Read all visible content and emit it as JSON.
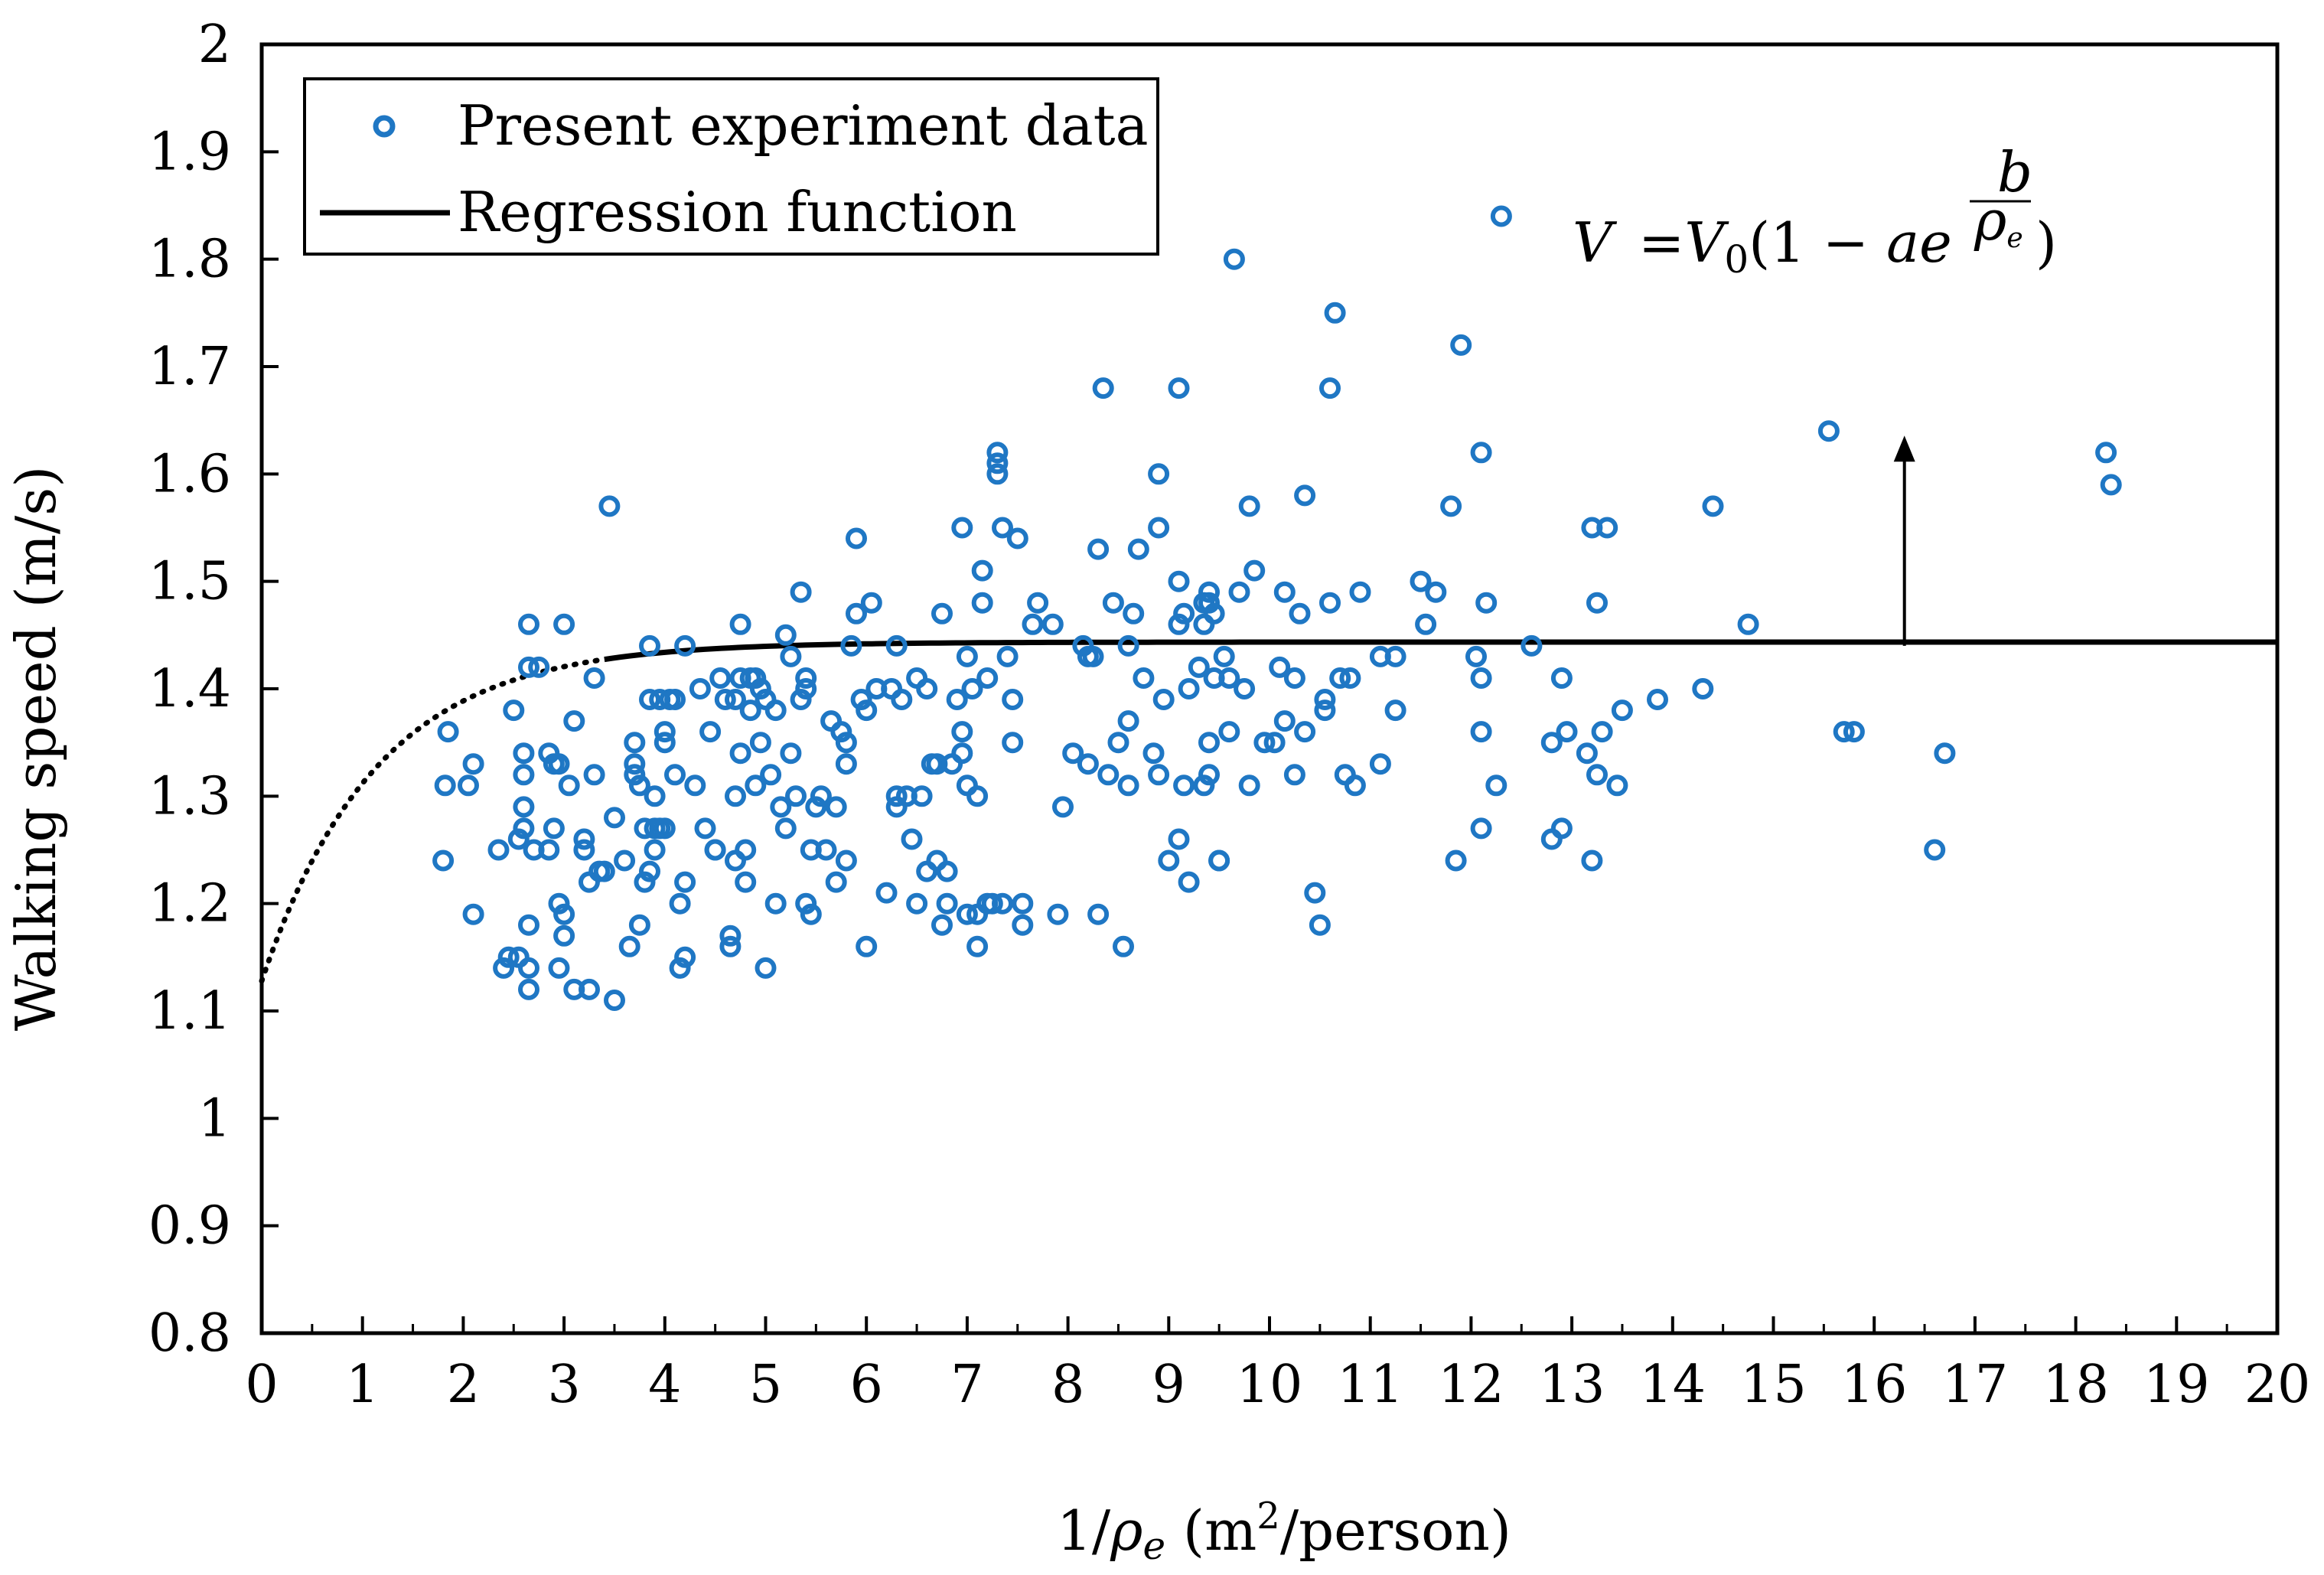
{
  "chart_data": {
    "type": "scatter",
    "title": "",
    "xlabel": {
      "pre": "1/",
      "rho": "ρ",
      "sub": "e",
      "unit_open": " (m",
      "sup": "2",
      "unit_close": "/person)"
    },
    "ylabel": "Walking speed (m/s)",
    "xlim": [
      0,
      20
    ],
    "ylim": [
      0.8,
      2.0
    ],
    "x_ticks": [
      "0",
      "1",
      "2",
      "3",
      "4",
      "5",
      "6",
      "7",
      "8",
      "9",
      "10",
      "11",
      "12",
      "13",
      "14",
      "15",
      "16",
      "17",
      "18",
      "19",
      "20"
    ],
    "y_ticks": [
      "0.8",
      "0.9",
      "1",
      "1.1",
      "1.2",
      "1.3",
      "1.4",
      "1.5",
      "1.6",
      "1.7",
      "1.8",
      "1.9",
      "2"
    ],
    "grid": false,
    "legend": {
      "position": "top-left",
      "entries": [
        {
          "label": "Present experiment data",
          "marker": "circle"
        },
        {
          "label": "Regression function",
          "marker": "line"
        }
      ]
    },
    "annotation": {
      "V": "V",
      "eq": "=",
      "V0": "V",
      "V0sub": "0",
      "open": "(1 − ",
      "a": "a",
      "e": "e",
      "close": ")",
      "num": "b",
      "den": "ρ",
      "densub": "e",
      "arrow_from": [
        16.3,
        1.44
      ],
      "arrow_to": [
        16.3,
        1.63
      ]
    },
    "regression": {
      "V0": 1.4435,
      "a": 0.2186,
      "b": -0.875,
      "x_start": 0,
      "x_end": 20,
      "dotted_until": 3.4
    },
    "series": [
      {
        "name": "Present experiment data",
        "color": "#1f77c4",
        "points": [
          [
            1.8,
            1.24
          ],
          [
            1.85,
            1.36
          ],
          [
            1.82,
            1.31
          ],
          [
            2.05,
            1.31
          ],
          [
            2.1,
            1.33
          ],
          [
            2.1,
            1.19
          ],
          [
            2.35,
            1.25
          ],
          [
            2.4,
            1.14
          ],
          [
            2.45,
            1.15
          ],
          [
            2.5,
            1.38
          ],
          [
            2.55,
            1.26
          ],
          [
            2.55,
            1.15
          ],
          [
            2.6,
            1.34
          ],
          [
            2.6,
            1.32
          ],
          [
            2.6,
            1.29
          ],
          [
            2.6,
            1.27
          ],
          [
            2.65,
            1.46
          ],
          [
            2.65,
            1.42
          ],
          [
            2.65,
            1.18
          ],
          [
            2.65,
            1.14
          ],
          [
            2.65,
            1.12
          ],
          [
            2.7,
            1.25
          ],
          [
            2.75,
            1.42
          ],
          [
            2.85,
            1.34
          ],
          [
            2.85,
            1.25
          ],
          [
            2.9,
            1.27
          ],
          [
            2.9,
            1.33
          ],
          [
            2.95,
            1.33
          ],
          [
            2.95,
            1.2
          ],
          [
            2.95,
            1.14
          ],
          [
            3.0,
            1.46
          ],
          [
            3.0,
            1.19
          ],
          [
            3.0,
            1.17
          ],
          [
            3.05,
            1.31
          ],
          [
            3.1,
            1.37
          ],
          [
            3.1,
            1.12
          ],
          [
            3.2,
            1.26
          ],
          [
            3.2,
            1.25
          ],
          [
            3.25,
            1.12
          ],
          [
            3.25,
            1.22
          ],
          [
            3.3,
            1.41
          ],
          [
            3.3,
            1.32
          ],
          [
            3.35,
            1.23
          ],
          [
            3.4,
            1.23
          ],
          [
            3.45,
            1.57
          ],
          [
            3.5,
            1.28
          ],
          [
            3.5,
            1.11
          ],
          [
            3.6,
            1.24
          ],
          [
            3.65,
            1.16
          ],
          [
            3.7,
            1.35
          ],
          [
            3.7,
            1.33
          ],
          [
            3.7,
            1.32
          ],
          [
            3.75,
            1.31
          ],
          [
            3.75,
            1.18
          ],
          [
            3.8,
            1.27
          ],
          [
            3.8,
            1.22
          ],
          [
            3.85,
            1.44
          ],
          [
            3.85,
            1.39
          ],
          [
            3.85,
            1.23
          ],
          [
            3.9,
            1.3
          ],
          [
            3.9,
            1.27
          ],
          [
            3.9,
            1.25
          ],
          [
            3.95,
            1.27
          ],
          [
            3.95,
            1.39
          ],
          [
            4.0,
            1.36
          ],
          [
            4.0,
            1.35
          ],
          [
            4.0,
            1.27
          ],
          [
            4.05,
            1.39
          ],
          [
            4.1,
            1.39
          ],
          [
            4.1,
            1.32
          ],
          [
            4.15,
            1.2
          ],
          [
            4.15,
            1.14
          ],
          [
            4.2,
            1.44
          ],
          [
            4.2,
            1.15
          ],
          [
            4.2,
            1.22
          ],
          [
            4.3,
            1.31
          ],
          [
            4.35,
            1.4
          ],
          [
            4.4,
            1.27
          ],
          [
            4.45,
            1.36
          ],
          [
            4.5,
            1.25
          ],
          [
            4.5,
            1.25
          ],
          [
            4.55,
            1.41
          ],
          [
            4.6,
            1.39
          ],
          [
            4.65,
            1.17
          ],
          [
            4.65,
            1.16
          ],
          [
            4.7,
            1.39
          ],
          [
            4.7,
            1.24
          ],
          [
            4.7,
            1.3
          ],
          [
            4.75,
            1.46
          ],
          [
            4.75,
            1.41
          ],
          [
            4.75,
            1.34
          ],
          [
            4.8,
            1.25
          ],
          [
            4.8,
            1.22
          ],
          [
            4.85,
            1.41
          ],
          [
            4.85,
            1.38
          ],
          [
            4.9,
            1.41
          ],
          [
            4.9,
            1.31
          ],
          [
            4.95,
            1.4
          ],
          [
            4.95,
            1.35
          ],
          [
            5.0,
            1.39
          ],
          [
            5.0,
            1.14
          ],
          [
            5.05,
            1.32
          ],
          [
            5.1,
            1.38
          ],
          [
            5.1,
            1.2
          ],
          [
            5.15,
            1.29
          ],
          [
            5.2,
            1.45
          ],
          [
            5.2,
            1.27
          ],
          [
            5.25,
            1.34
          ],
          [
            5.25,
            1.43
          ],
          [
            5.3,
            1.3
          ],
          [
            5.35,
            1.49
          ],
          [
            5.35,
            1.39
          ],
          [
            5.4,
            1.41
          ],
          [
            5.4,
            1.4
          ],
          [
            5.4,
            1.2
          ],
          [
            5.45,
            1.19
          ],
          [
            5.45,
            1.25
          ],
          [
            5.5,
            1.29
          ],
          [
            5.55,
            1.3
          ],
          [
            5.6,
            1.25
          ],
          [
            5.65,
            1.37
          ],
          [
            5.7,
            1.29
          ],
          [
            5.7,
            1.22
          ],
          [
            5.75,
            1.36
          ],
          [
            5.8,
            1.24
          ],
          [
            5.8,
            1.35
          ],
          [
            5.8,
            1.33
          ],
          [
            5.85,
            1.44
          ],
          [
            5.9,
            1.54
          ],
          [
            5.9,
            1.47
          ],
          [
            5.95,
            1.39
          ],
          [
            6.0,
            1.16
          ],
          [
            6.0,
            1.38
          ],
          [
            6.05,
            1.48
          ],
          [
            6.1,
            1.4
          ],
          [
            6.2,
            1.21
          ],
          [
            6.25,
            1.4
          ],
          [
            6.3,
            1.44
          ],
          [
            6.3,
            1.3
          ],
          [
            6.3,
            1.29
          ],
          [
            6.35,
            1.39
          ],
          [
            6.4,
            1.3
          ],
          [
            6.45,
            1.26
          ],
          [
            6.5,
            1.41
          ],
          [
            6.5,
            1.2
          ],
          [
            6.55,
            1.3
          ],
          [
            6.6,
            1.4
          ],
          [
            6.6,
            1.23
          ],
          [
            6.65,
            1.33
          ],
          [
            6.7,
            1.24
          ],
          [
            6.7,
            1.33
          ],
          [
            6.75,
            1.47
          ],
          [
            6.75,
            1.18
          ],
          [
            6.8,
            1.2
          ],
          [
            6.8,
            1.23
          ],
          [
            6.85,
            1.33
          ],
          [
            6.9,
            1.39
          ],
          [
            6.95,
            1.55
          ],
          [
            6.95,
            1.36
          ],
          [
            6.95,
            1.34
          ],
          [
            7.0,
            1.43
          ],
          [
            7.0,
            1.31
          ],
          [
            7.0,
            1.19
          ],
          [
            7.05,
            1.4
          ],
          [
            7.1,
            1.19
          ],
          [
            7.1,
            1.3
          ],
          [
            7.1,
            1.16
          ],
          [
            7.15,
            1.48
          ],
          [
            7.15,
            1.51
          ],
          [
            7.2,
            1.41
          ],
          [
            7.2,
            1.2
          ],
          [
            7.25,
            1.2
          ],
          [
            7.3,
            1.62
          ],
          [
            7.3,
            1.61
          ],
          [
            7.3,
            1.6
          ],
          [
            7.35,
            1.55
          ],
          [
            7.35,
            1.2
          ],
          [
            7.4,
            1.43
          ],
          [
            7.45,
            1.35
          ],
          [
            7.45,
            1.39
          ],
          [
            7.5,
            1.54
          ],
          [
            7.55,
            1.2
          ],
          [
            7.55,
            1.18
          ],
          [
            7.65,
            1.46
          ],
          [
            7.7,
            1.48
          ],
          [
            7.85,
            1.46
          ],
          [
            7.9,
            1.19
          ],
          [
            7.95,
            1.29
          ],
          [
            8.05,
            1.34
          ],
          [
            8.15,
            1.44
          ],
          [
            8.2,
            1.43
          ],
          [
            8.2,
            1.33
          ],
          [
            8.25,
            1.43
          ],
          [
            8.3,
            1.53
          ],
          [
            8.3,
            1.19
          ],
          [
            8.35,
            1.68
          ],
          [
            8.4,
            1.32
          ],
          [
            8.45,
            1.48
          ],
          [
            8.5,
            1.35
          ],
          [
            8.55,
            1.16
          ],
          [
            8.6,
            1.37
          ],
          [
            8.6,
            1.31
          ],
          [
            8.6,
            1.44
          ],
          [
            8.65,
            1.47
          ],
          [
            8.7,
            1.53
          ],
          [
            8.75,
            1.41
          ],
          [
            8.85,
            1.34
          ],
          [
            8.9,
            1.6
          ],
          [
            8.9,
            1.55
          ],
          [
            8.95,
            1.39
          ],
          [
            8.9,
            1.32
          ],
          [
            9.0,
            1.24
          ],
          [
            9.1,
            1.68
          ],
          [
            9.1,
            1.46
          ],
          [
            9.1,
            1.5
          ],
          [
            9.1,
            1.26
          ],
          [
            9.15,
            1.47
          ],
          [
            9.15,
            1.31
          ],
          [
            9.2,
            1.4
          ],
          [
            9.2,
            1.22
          ],
          [
            9.3,
            1.42
          ],
          [
            9.35,
            1.48
          ],
          [
            9.35,
            1.46
          ],
          [
            9.35,
            1.31
          ],
          [
            9.4,
            1.49
          ],
          [
            9.4,
            1.48
          ],
          [
            9.4,
            1.35
          ],
          [
            9.4,
            1.32
          ],
          [
            9.45,
            1.47
          ],
          [
            9.45,
            1.41
          ],
          [
            9.5,
            1.24
          ],
          [
            9.5,
            1.24
          ],
          [
            9.55,
            1.43
          ],
          [
            9.6,
            1.36
          ],
          [
            9.6,
            1.41
          ],
          [
            9.65,
            1.8
          ],
          [
            9.7,
            1.49
          ],
          [
            9.75,
            1.4
          ],
          [
            9.8,
            1.31
          ],
          [
            9.8,
            1.57
          ],
          [
            9.85,
            1.51
          ],
          [
            9.95,
            1.35
          ],
          [
            10.05,
            1.35
          ],
          [
            10.1,
            1.42
          ],
          [
            10.15,
            1.37
          ],
          [
            10.15,
            1.49
          ],
          [
            10.25,
            1.41
          ],
          [
            10.25,
            1.32
          ],
          [
            10.3,
            1.47
          ],
          [
            10.35,
            1.58
          ],
          [
            10.35,
            1.36
          ],
          [
            10.45,
            1.21
          ],
          [
            10.5,
            1.18
          ],
          [
            10.55,
            1.38
          ],
          [
            10.55,
            1.39
          ],
          [
            10.6,
            1.48
          ],
          [
            10.6,
            1.68
          ],
          [
            10.65,
            1.75
          ],
          [
            10.7,
            1.41
          ],
          [
            10.75,
            1.32
          ],
          [
            10.8,
            1.41
          ],
          [
            10.85,
            1.31
          ],
          [
            10.9,
            1.49
          ],
          [
            11.1,
            1.33
          ],
          [
            11.1,
            1.43
          ],
          [
            11.25,
            1.43
          ],
          [
            11.25,
            1.38
          ],
          [
            11.5,
            1.5
          ],
          [
            11.55,
            1.46
          ],
          [
            11.65,
            1.49
          ],
          [
            11.8,
            1.57
          ],
          [
            11.85,
            1.24
          ],
          [
            11.9,
            1.72
          ],
          [
            12.05,
            1.43
          ],
          [
            12.1,
            1.41
          ],
          [
            12.1,
            1.62
          ],
          [
            12.1,
            1.36
          ],
          [
            12.1,
            1.27
          ],
          [
            12.15,
            1.48
          ],
          [
            12.25,
            1.31
          ],
          [
            12.3,
            1.84
          ],
          [
            12.6,
            1.44
          ],
          [
            12.8,
            1.26
          ],
          [
            12.8,
            1.35
          ],
          [
            12.9,
            1.27
          ],
          [
            12.9,
            1.41
          ],
          [
            12.95,
            1.36
          ],
          [
            13.15,
            1.34
          ],
          [
            13.2,
            1.55
          ],
          [
            13.2,
            1.24
          ],
          [
            13.25,
            1.48
          ],
          [
            13.25,
            1.32
          ],
          [
            13.3,
            1.36
          ],
          [
            13.35,
            1.55
          ],
          [
            13.45,
            1.31
          ],
          [
            13.5,
            1.38
          ],
          [
            13.85,
            1.39
          ],
          [
            14.3,
            1.4
          ],
          [
            14.4,
            1.57
          ],
          [
            14.75,
            1.46
          ],
          [
            15.55,
            1.64
          ],
          [
            15.7,
            1.36
          ],
          [
            15.8,
            1.36
          ],
          [
            16.6,
            1.25
          ],
          [
            16.7,
            1.34
          ],
          [
            18.3,
            1.62
          ],
          [
            18.35,
            1.59
          ]
        ]
      }
    ]
  }
}
